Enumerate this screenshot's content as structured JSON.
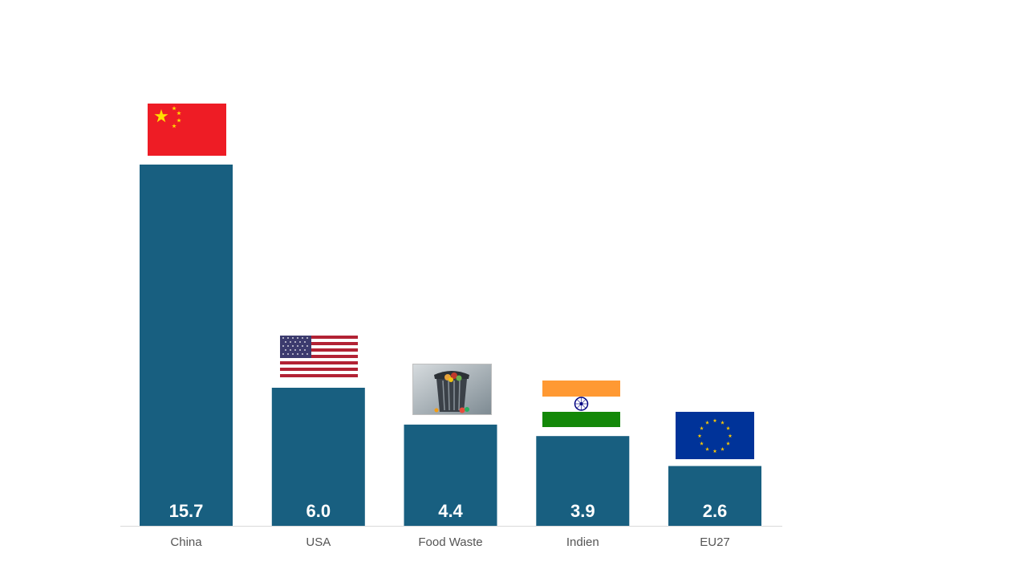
{
  "chart_data": {
    "type": "bar",
    "categories": [
      "China",
      "USA",
      "Food Waste",
      "Indien",
      "EU27"
    ],
    "values": [
      15.7,
      6.0,
      4.4,
      3.9,
      2.6
    ],
    "value_labels": [
      "15.7",
      "6.0",
      "4.4",
      "3.9",
      "2.6"
    ],
    "title": "",
    "xlabel": "",
    "ylabel": "",
    "ylim": [
      0,
      15.7
    ],
    "grid": false,
    "legend": "none",
    "bar_color": "#185F80",
    "value_label_color": "#ffffff",
    "category_label_color": "#555555",
    "images_above_bars": [
      "china-flag",
      "usa-flag",
      "food-waste-photo",
      "india-flag",
      "eu-flag"
    ]
  }
}
